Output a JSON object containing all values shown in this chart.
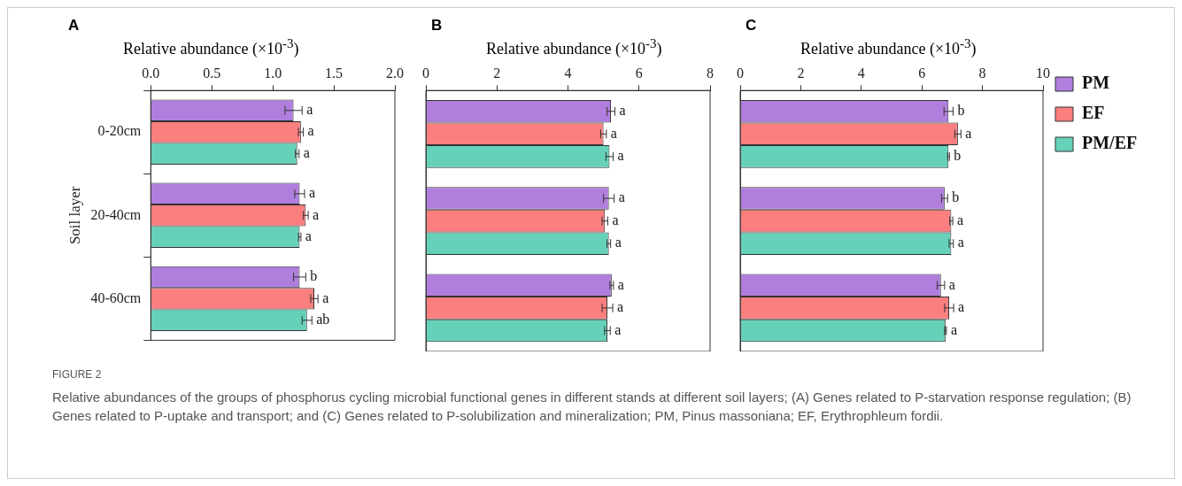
{
  "chart_data": [
    {
      "type": "bar",
      "title": "A",
      "orientation": "horizontal",
      "xlabel": "Relative abundance (×10$^{-3}$)",
      "ylabel": "Soil layer",
      "categories": [
        "0-20cm",
        "20-40cm",
        "40-60cm"
      ],
      "xlim": [
        0,
        2.0
      ],
      "xticks": [
        {
          "value": 0,
          "label": "0.0"
        },
        0.5,
        {
          "value": 1,
          "label": "1.0"
        },
        1.5,
        {
          "value": 2,
          "label": "2.0"
        }
      ],
      "series": [
        {
          "color": "#b07fdd",
          "values": [
            1.17,
            1.22,
            1.22
          ],
          "errors": [
            0.07,
            0.04,
            0.05
          ],
          "value_labels": [
            "a",
            "a",
            "b"
          ]
        },
        {
          "color": "#fb7f7f",
          "values": [
            1.23,
            1.27,
            1.34
          ],
          "errors": [
            0.02,
            0.02,
            0.03
          ],
          "value_labels": [
            "a",
            "a",
            "a"
          ]
        },
        {
          "color": "#66d1b9",
          "values": [
            1.2,
            1.22,
            1.28
          ],
          "errors": [
            0.015,
            0.01,
            0.04
          ],
          "value_labels": [
            "a",
            "a",
            "ab"
          ]
        }
      ],
      "annotations": [
        "FIGURE 2",
        "Relative abundances of the groups of phosphorus cycling microbial functional genes in different stands at different soil layers; (A) Genes related to P-starvation response regulation; (B) Genes related to P-uptake and transport; and (C) Genes related to P-solubilization and mineralization; PM, Pinus massoniana; EF, Erythrophleum fordii."
      ]
    },
    {
      "type": "bar",
      "title": "B",
      "orientation": "horizontal",
      "xlabel": "Relative abundance (×10$^{-3}$)",
      "categories": [
        null,
        null,
        null
      ],
      "xlim": [
        0,
        8
      ],
      "xticks": [
        0,
        2,
        4,
        6,
        8
      ],
      "tick_labels": "x",
      "series": [
        {
          "color": "#b07fdd",
          "values": [
            5.21,
            5.15,
            5.23
          ],
          "errors": [
            0.11,
            0.15,
            0.05
          ],
          "value_labels": [
            "a",
            "a",
            "a"
          ]
        },
        {
          "color": "#fb7f7f",
          "values": [
            5.0,
            5.04,
            5.11
          ],
          "errors": [
            0.08,
            0.08,
            0.15
          ],
          "value_labels": [
            "a",
            "a",
            "a"
          ]
        },
        {
          "color": "#66d1b9",
          "values": [
            5.17,
            5.15,
            5.11
          ],
          "errors": [
            0.1,
            0.05,
            0.08
          ],
          "value_labels": [
            "a",
            "a",
            "a"
          ]
        }
      ]
    },
    {
      "type": "bar",
      "title": "C",
      "orientation": "horizontal",
      "xlabel": "Relative abundance (×10$^{-3}$)",
      "categories": [
        null,
        null,
        null
      ],
      "xlim": [
        0,
        10
      ],
      "xticks": [
        0,
        2,
        4,
        6,
        8,
        10
      ],
      "tick_labels": "x",
      "legend": "right",
      "series": [
        {
          "name": "PM",
          "color": "#b07fdd",
          "values": [
            6.88,
            6.75,
            6.63
          ],
          "errors": [
            0.15,
            0.1,
            0.12
          ],
          "value_labels": [
            "b",
            "b",
            "a"
          ]
        },
        {
          "name": "EF",
          "color": "#fb7f7f",
          "values": [
            7.19,
            6.97,
            6.9
          ],
          "errors": [
            0.1,
            0.05,
            0.15
          ],
          "value_labels": [
            "a",
            "a",
            "a"
          ]
        },
        {
          "name": "PM/EF",
          "color": "#66d1b9",
          "values": [
            6.88,
            6.97,
            6.78
          ],
          "errors": [
            0.03,
            0.07,
            0.03
          ],
          "value_labels": [
            "b",
            "a",
            "a"
          ]
        }
      ]
    }
  ]
}
